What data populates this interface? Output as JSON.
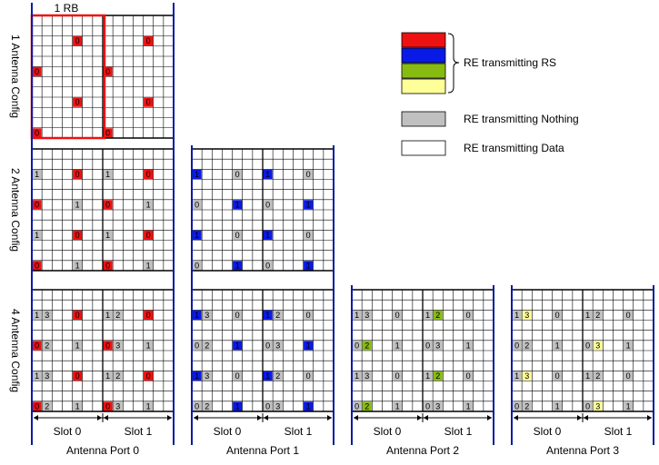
{
  "rb_label": "1 RB",
  "row_labels": [
    "1 Antenna Config",
    "2 Antenna Config",
    "4 Antenna Config"
  ],
  "ports": [
    {
      "label": "Antenna Port 0",
      "slots": [
        "Slot 0",
        "Slot 1"
      ]
    },
    {
      "label": "Antenna Port 1",
      "slots": [
        "Slot 0",
        "Slot 1"
      ]
    },
    {
      "label": "Antenna Port 2",
      "slots": [
        "Slot 0",
        "Slot 1"
      ]
    },
    {
      "label": "Antenna Port 3",
      "slots": [
        "Slot 0",
        "Slot 1"
      ]
    }
  ],
  "legend": {
    "rs_label": "RE transmitting RS",
    "nothing_label": "RE transmitting Nothing",
    "data_label": "RE transmitting Data"
  },
  "colors": {
    "port0": "#ee1111",
    "port1": "#0a1ae6",
    "port2": "#88bb11",
    "port3": "#ffff99",
    "nothing": "#c0c0c0",
    "data": "#ffffff",
    "rb_box": "#ee1111",
    "port_border": "#0a1aa6"
  },
  "grid": {
    "regular": [
      {
        "sym": 0,
        "p": [
          0,
          6
        ]
      },
      {
        "sym": 4,
        "p": [
          3,
          9
        ]
      },
      {
        "sym": 7,
        "p": [
          0,
          6
        ]
      },
      {
        "sym": 11,
        "p": [
          3,
          9
        ]
      }
    ],
    "extra_port_symbols": [
      1,
      8
    ]
  }
}
